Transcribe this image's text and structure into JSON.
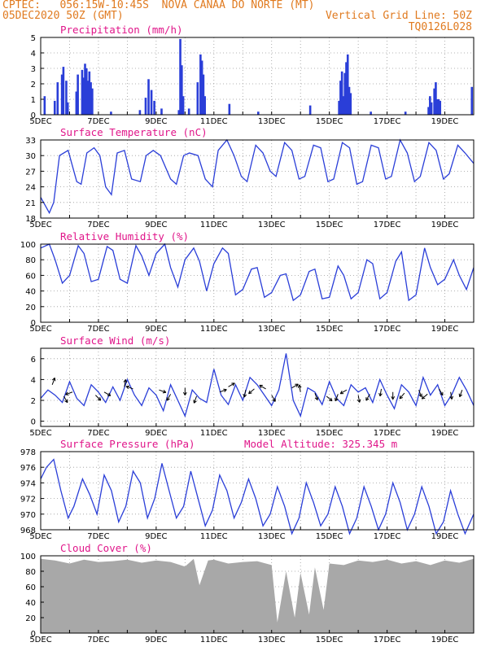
{
  "header": {
    "line1_left": "CPTEC:   056:15W-10:45S  NOVA CANAA DO NORTE (MT)",
    "line2_left": "05DEC2020 50Z (GMT)",
    "line2_right": "Vertical Grid Line: 50Z",
    "line3_right": "TQ0126L028"
  },
  "colors": {
    "header": "#e07a1f",
    "title": "#e0168a",
    "line": "#2a3ed8",
    "bar": "#2a3ed8",
    "cloud": "#a8a8a8"
  },
  "x_axis": {
    "tick_labels": [
      "5DEC",
      "7DEC",
      "9DEC",
      "11DEC",
      "13DEC",
      "15DEC",
      "17DEC",
      "19DEC"
    ],
    "tick_days": [
      5,
      7,
      9,
      11,
      13,
      15,
      17,
      19
    ],
    "range_days": [
      5,
      20
    ]
  },
  "chart_data": [
    {
      "type": "bar",
      "title": "Precipitation (mm/h)",
      "ylim": [
        0,
        5
      ],
      "yticks": [
        0,
        1,
        2,
        3,
        4,
        5
      ],
      "x": [
        5.1,
        5.45,
        5.55,
        5.7,
        5.75,
        5.85,
        5.9,
        6.2,
        6.25,
        6.4,
        6.45,
        6.5,
        6.55,
        6.6,
        6.65,
        6.7,
        6.75,
        7.4,
        8.4,
        8.6,
        8.7,
        8.8,
        8.9,
        9.15,
        9.75,
        9.8,
        9.85,
        9.9,
        10.1,
        10.4,
        10.5,
        10.55,
        10.6,
        10.65,
        11.5,
        12.5,
        14.3,
        15.3,
        15.35,
        15.4,
        15.45,
        15.5,
        15.55,
        15.6,
        15.65,
        15.7,
        16.4,
        17.6,
        18.4,
        18.45,
        18.5,
        18.6,
        18.65,
        18.7,
        18.75,
        18.8,
        19.9
      ],
      "values": [
        1.2,
        0.9,
        2.1,
        2.6,
        3.1,
        2.2,
        0.8,
        1.5,
        2.6,
        2.9,
        2.4,
        3.3,
        3.0,
        2.2,
        2.8,
        2.1,
        1.7,
        0.2,
        0.3,
        1.1,
        2.3,
        1.6,
        0.9,
        0.4,
        0.3,
        4.9,
        3.2,
        1.2,
        0.4,
        2.1,
        3.9,
        3.5,
        2.6,
        1.2,
        0.7,
        0.2,
        0.6,
        0.9,
        2.2,
        2.8,
        1.2,
        2.7,
        3.4,
        3.9,
        1.8,
        1.4,
        0.2,
        0.2,
        0.5,
        1.2,
        0.8,
        1.7,
        2.1,
        1.0,
        1.0,
        0.9,
        1.8
      ]
    },
    {
      "type": "line",
      "title": "Surface Temperature (nC)",
      "ylim": [
        18,
        33
      ],
      "yticks": [
        18,
        21,
        24,
        27,
        30,
        33
      ],
      "x": [
        5,
        5.3,
        5.45,
        5.65,
        5.95,
        6.25,
        6.4,
        6.6,
        6.85,
        7.05,
        7.25,
        7.45,
        7.65,
        7.9,
        8.15,
        8.45,
        8.65,
        8.9,
        9.15,
        9.5,
        9.7,
        9.95,
        10.15,
        10.45,
        10.7,
        10.95,
        11.15,
        11.45,
        11.7,
        11.95,
        12.15,
        12.45,
        12.7,
        12.95,
        13.15,
        13.45,
        13.7,
        13.95,
        14.15,
        14.45,
        14.7,
        14.95,
        15.15,
        15.45,
        15.7,
        15.95,
        16.15,
        16.45,
        16.7,
        16.95,
        17.15,
        17.45,
        17.7,
        17.95,
        18.15,
        18.45,
        18.7,
        18.95,
        19.15,
        19.45,
        19.7,
        20
      ],
      "values": [
        22,
        19,
        21,
        30,
        31,
        25,
        24.5,
        30.5,
        31.5,
        30,
        24,
        22.5,
        30.5,
        31,
        25.5,
        25,
        30,
        31,
        30,
        25.5,
        24.5,
        30,
        30.5,
        30,
        25.5,
        24,
        31,
        33,
        30,
        26,
        25,
        32,
        30.5,
        27,
        26,
        32.5,
        31,
        25.5,
        26,
        32,
        31.5,
        25,
        25.5,
        32.5,
        31.5,
        24.5,
        25,
        32,
        31.5,
        25.5,
        26,
        33,
        30.5,
        25,
        26,
        32.5,
        31,
        25.5,
        26.5,
        32,
        30.5,
        28.5
      ]
    },
    {
      "type": "line",
      "title": "Relative Humidity (%)",
      "ylim": [
        0,
        100
      ],
      "yticks": [
        0,
        20,
        40,
        60,
        80,
        100
      ],
      "x": [
        5,
        5.3,
        5.5,
        5.75,
        6,
        6.3,
        6.5,
        6.75,
        7,
        7.3,
        7.5,
        7.75,
        8,
        8.3,
        8.5,
        8.75,
        9,
        9.3,
        9.5,
        9.75,
        10,
        10.3,
        10.5,
        10.75,
        11,
        11.3,
        11.5,
        11.75,
        12,
        12.3,
        12.5,
        12.75,
        13,
        13.3,
        13.5,
        13.75,
        14,
        14.3,
        14.5,
        14.75,
        15,
        15.3,
        15.5,
        15.75,
        16,
        16.3,
        16.5,
        16.75,
        17,
        17.3,
        17.5,
        17.75,
        18,
        18.3,
        18.5,
        18.75,
        19,
        19.3,
        19.5,
        19.75,
        20
      ],
      "values": [
        95,
        100,
        80,
        50,
        60,
        98,
        88,
        52,
        55,
        97,
        92,
        55,
        50,
        98,
        85,
        60,
        88,
        100,
        70,
        45,
        80,
        95,
        78,
        40,
        75,
        95,
        88,
        35,
        42,
        68,
        70,
        32,
        38,
        60,
        62,
        28,
        35,
        65,
        68,
        30,
        32,
        72,
        60,
        30,
        38,
        80,
        75,
        30,
        38,
        78,
        90,
        28,
        35,
        95,
        70,
        48,
        55,
        80,
        60,
        42,
        70
      ]
    },
    {
      "type": "line",
      "title": "Surface Wind (m/s)",
      "ylim": [
        -0.5,
        7
      ],
      "yticks": [
        0,
        2,
        4,
        6
      ],
      "x": [
        5,
        5.25,
        5.5,
        5.75,
        6,
        6.25,
        6.5,
        6.75,
        7,
        7.25,
        7.5,
        7.75,
        8,
        8.25,
        8.5,
        8.75,
        9,
        9.25,
        9.5,
        9.75,
        10,
        10.25,
        10.5,
        10.75,
        11,
        11.25,
        11.5,
        11.75,
        12,
        12.25,
        12.5,
        12.75,
        13,
        13.25,
        13.5,
        13.75,
        14,
        14.25,
        14.5,
        14.75,
        15,
        15.25,
        15.5,
        15.75,
        16,
        16.25,
        16.5,
        16.75,
        17,
        17.25,
        17.5,
        17.75,
        18,
        18.25,
        18.5,
        18.75,
        19,
        19.25,
        19.5,
        19.75,
        20
      ],
      "values": [
        2.2,
        3.0,
        2.5,
        1.8,
        3.8,
        2.2,
        1.5,
        3.5,
        2.8,
        1.8,
        3.3,
        2.0,
        4.0,
        2.5,
        1.5,
        3.2,
        2.5,
        1.0,
        3.5,
        2.0,
        0.5,
        3.0,
        2.2,
        1.8,
        5.0,
        2.5,
        1.6,
        3.5,
        2.0,
        4.2,
        3.5,
        2.5,
        1.5,
        3.0,
        6.5,
        2.0,
        0.5,
        3.2,
        2.8,
        1.6,
        3.8,
        2.2,
        1.5,
        3.5,
        2.8,
        3.2,
        1.8,
        4.0,
        2.5,
        1.2,
        3.5,
        2.8,
        1.5,
        4.2,
        2.5,
        3.5,
        1.5,
        2.6,
        4.2,
        3.0,
        1.5
      ],
      "arrows_x": [
        5.4,
        5.8,
        6.1,
        6.9,
        7.2,
        7.9,
        8.2,
        9.1,
        9.5,
        10.0,
        10.4,
        11.2,
        11.5,
        12.1,
        12.4,
        12.8,
        13.0,
        13.7,
        14.0,
        14.5,
        14.9,
        15.3,
        15.6,
        16.0,
        16.4,
        16.8,
        17.2,
        17.6,
        18.1,
        18.4,
        18.8,
        19.2,
        19.6
      ],
      "arrows_y": [
        3.5,
        2.4,
        2.8,
        2.5,
        2.8,
        3.3,
        3.1,
        3.0,
        2.6,
        3.2,
        2.4,
        2.8,
        3.3,
        3.0,
        3.1,
        3.1,
        2.5,
        3.2,
        2.8,
        2.7,
        2.4,
        2.6,
        3.0,
        2.5,
        2.6,
        3.1,
        2.8,
        2.7,
        3.0,
        2.6,
        3.1,
        2.8,
        3.0
      ],
      "arrows_angle": [
        70,
        -60,
        200,
        -45,
        -30,
        80,
        160,
        -20,
        -120,
        -90,
        -110,
        20,
        30,
        -100,
        -140,
        150,
        -60,
        30,
        100,
        -70,
        -40,
        -110,
        -150,
        -80,
        -120,
        -100,
        -90,
        -130,
        -70,
        -140,
        -60,
        -80,
        -110
      ]
    },
    {
      "type": "line",
      "title": "Surface Pressure (hPa)",
      "annotation": "Model Altitude: 325.345 m",
      "ylim": [
        968,
        978
      ],
      "yticks": [
        968,
        970,
        972,
        974,
        976,
        978
      ],
      "x": [
        5,
        5.2,
        5.45,
        5.7,
        5.95,
        6.15,
        6.45,
        6.7,
        6.95,
        7.2,
        7.45,
        7.7,
        7.95,
        8.2,
        8.45,
        8.7,
        8.95,
        9.2,
        9.45,
        9.7,
        9.95,
        10.2,
        10.45,
        10.7,
        10.95,
        11.2,
        11.45,
        11.7,
        11.95,
        12.2,
        12.45,
        12.7,
        12.95,
        13.2,
        13.45,
        13.7,
        13.95,
        14.2,
        14.45,
        14.7,
        14.95,
        15.2,
        15.45,
        15.7,
        15.95,
        16.2,
        16.45,
        16.7,
        16.95,
        17.2,
        17.45,
        17.7,
        17.95,
        18.2,
        18.45,
        18.7,
        18.95,
        19.2,
        19.45,
        19.7,
        20
      ],
      "values": [
        974.5,
        976,
        977,
        973,
        969.5,
        971,
        974.5,
        972.5,
        970,
        975,
        973,
        969,
        971,
        975.5,
        974,
        969.5,
        972,
        976.5,
        973,
        969.5,
        971,
        975.5,
        972,
        968.5,
        970.5,
        975,
        973,
        969.5,
        971.5,
        974.5,
        972,
        968.5,
        970,
        973.5,
        971,
        967.5,
        969.5,
        974,
        971.5,
        968.5,
        970,
        973.5,
        971,
        967.5,
        969.5,
        973.5,
        971,
        968,
        970,
        974,
        971.5,
        968,
        970,
        973.5,
        971,
        967.5,
        969,
        973,
        970,
        967.5,
        970
      ]
    },
    {
      "type": "area",
      "title": "Cloud Cover (%)",
      "ylim": [
        0,
        100
      ],
      "yticks": [
        0,
        20,
        40,
        60,
        80,
        100
      ],
      "x": [
        5,
        5.5,
        6,
        6.5,
        7,
        7.5,
        8,
        8.5,
        9,
        9.5,
        10,
        10.3,
        10.5,
        10.8,
        11,
        11.5,
        12,
        12.5,
        13,
        13.2,
        13.5,
        13.8,
        14,
        14.3,
        14.5,
        14.8,
        15,
        15.5,
        16,
        16.5,
        17,
        17.5,
        18,
        18.5,
        19,
        19.5,
        20
      ],
      "values": [
        96,
        94,
        90,
        95,
        92,
        93,
        95,
        91,
        94,
        92,
        86,
        96,
        62,
        94,
        95,
        90,
        92,
        93,
        88,
        14,
        80,
        20,
        78,
        24,
        85,
        30,
        90,
        88,
        94,
        92,
        95,
        90,
        93,
        88,
        94,
        91,
        96
      ]
    }
  ]
}
